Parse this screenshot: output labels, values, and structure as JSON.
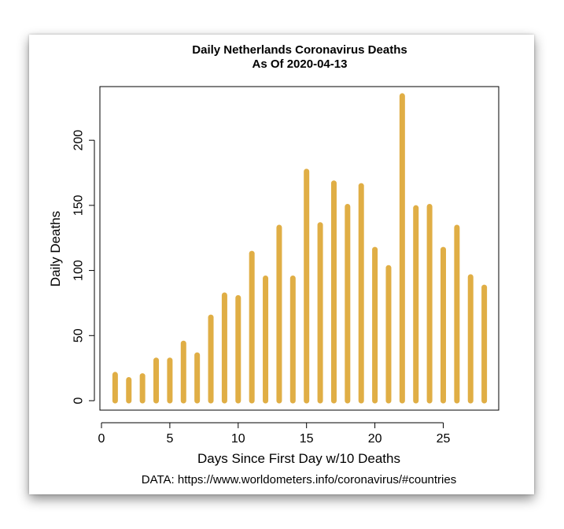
{
  "chart_data": {
    "type": "bar",
    "title": "Daily Netherlands Coronavirus Deaths",
    "subtitle": "As Of 2020-04-13",
    "xlabel": "Days Since First Day w/10 Deaths",
    "ylabel": "Daily Deaths",
    "caption": "DATA: https://www.worldometers.info/coronavirus/#countries",
    "x": [
      1,
      2,
      3,
      4,
      5,
      6,
      7,
      8,
      9,
      10,
      11,
      12,
      13,
      14,
      15,
      16,
      17,
      18,
      19,
      20,
      21,
      22,
      23,
      24,
      25,
      26,
      27,
      28
    ],
    "values": [
      20,
      16,
      19,
      31,
      31,
      44,
      35,
      64,
      81,
      79,
      113,
      94,
      133,
      94,
      176,
      135,
      167,
      149,
      165,
      116,
      102,
      234,
      148,
      149,
      116,
      133,
      95,
      87
    ],
    "xlim": [
      0,
      29
    ],
    "ylim": [
      0,
      240
    ],
    "xticks": [
      0,
      5,
      10,
      15,
      20,
      25
    ],
    "yticks": [
      0,
      50,
      100,
      150,
      200
    ],
    "bar_color": "#E0AE45",
    "grid": false,
    "legend": "none"
  }
}
